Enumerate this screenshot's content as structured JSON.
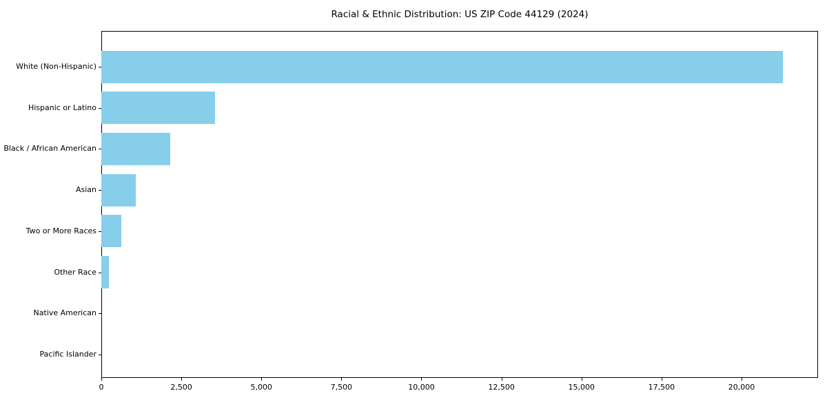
{
  "chart_data": {
    "type": "bar",
    "orientation": "horizontal",
    "title": "Racial & Ethnic Distribution: US ZIP Code 44129 (2024)",
    "categories": [
      "White (Non-Hispanic)",
      "Hispanic or Latino",
      "Black / African American",
      "Asian",
      "Two or More Races",
      "Other Race",
      "Native American",
      "Pacific Islander"
    ],
    "values": [
      21290,
      3550,
      2160,
      1070,
      620,
      240,
      0,
      0
    ],
    "xlabel": "",
    "ylabel": "",
    "xlim": [
      0,
      22390
    ],
    "xticks": [
      0,
      2500,
      5000,
      7500,
      10000,
      12500,
      15000,
      17500,
      20000
    ],
    "xtick_labels": [
      "0",
      "2,500",
      "5,000",
      "7,500",
      "10,000",
      "12,500",
      "15,000",
      "17,500",
      "20,000"
    ],
    "bar_color": "#87CEEB",
    "axis_color": "#000000",
    "text_color": "#000000",
    "background_color": "#ffffff",
    "grid": false,
    "legend": null
  }
}
